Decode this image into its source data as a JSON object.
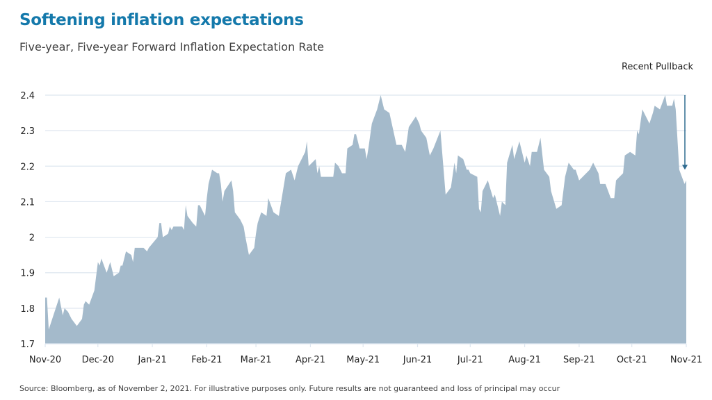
{
  "title": "Softening inflation expectations",
  "subtitle": "Five-year, Five-year Forward Inflation Expectation Rate",
  "source": "Source: Bloomberg, as of November 2, 2021. For illustrative purposes only. Future results are not guaranteed and loss of principal may occur",
  "colors": {
    "title": "#1479ab",
    "area": "#a4bacb",
    "grid": "#dde6ef",
    "arrow": "#2e6a8f"
  },
  "chart_data": {
    "type": "area",
    "title": "Softening inflation expectations",
    "subtitle": "Five-year, Five-year Forward Inflation Expectation Rate",
    "xlabel": "",
    "ylabel": "",
    "ylim": [
      1.7,
      2.4
    ],
    "xlim": [
      "2020-11-01",
      "2021-11-01"
    ],
    "grid": "horizontal",
    "y_ticks": [
      "1.7",
      "1.8",
      "1.9",
      "2",
      "2.1",
      "2.2",
      "2.3",
      "2.4"
    ],
    "x_ticks": [
      {
        "date": "2020-11-01",
        "label": "Nov-20"
      },
      {
        "date": "2020-12-01",
        "label": "Dec-20"
      },
      {
        "date": "2021-01-01",
        "label": "Jan-21"
      },
      {
        "date": "2021-02-01",
        "label": "Feb-21"
      },
      {
        "date": "2021-03-01",
        "label": "Mar-21"
      },
      {
        "date": "2021-04-01",
        "label": "Apr-21"
      },
      {
        "date": "2021-05-01",
        "label": "May-21"
      },
      {
        "date": "2021-06-01",
        "label": "Jun-21"
      },
      {
        "date": "2021-07-01",
        "label": "Jul-21"
      },
      {
        "date": "2021-08-01",
        "label": "Aug-21"
      },
      {
        "date": "2021-09-01",
        "label": "Sep-21"
      },
      {
        "date": "2021-10-01",
        "label": "Oct-21"
      },
      {
        "date": "2021-11-01",
        "label": "Nov-21"
      }
    ],
    "annotation": {
      "text": "Recent Pullback",
      "from_value": 2.4,
      "to_value": 2.19,
      "date": "2021-11-01"
    },
    "points": [
      [
        "2020-11-01",
        1.83
      ],
      [
        "2020-11-02",
        1.83
      ],
      [
        "2020-11-03",
        1.74
      ],
      [
        "2020-11-05",
        1.77
      ],
      [
        "2020-11-09",
        1.83
      ],
      [
        "2020-11-11",
        1.78
      ],
      [
        "2020-11-12",
        1.8
      ],
      [
        "2020-11-14",
        1.79
      ],
      [
        "2020-11-16",
        1.77
      ],
      [
        "2020-11-19",
        1.75
      ],
      [
        "2020-11-22",
        1.77
      ],
      [
        "2020-11-23",
        1.81
      ],
      [
        "2020-11-24",
        1.82
      ],
      [
        "2020-11-26",
        1.81
      ],
      [
        "2020-11-29",
        1.85
      ],
      [
        "2020-12-01",
        1.93
      ],
      [
        "2020-12-02",
        1.92
      ],
      [
        "2020-12-03",
        1.94
      ],
      [
        "2020-12-06",
        1.9
      ],
      [
        "2020-12-08",
        1.93
      ],
      [
        "2020-12-09",
        1.91
      ],
      [
        "2020-12-10",
        1.89
      ],
      [
        "2020-12-13",
        1.9
      ],
      [
        "2020-12-14",
        1.92
      ],
      [
        "2020-12-15",
        1.92
      ],
      [
        "2020-12-17",
        1.96
      ],
      [
        "2020-12-20",
        1.95
      ],
      [
        "2020-12-21",
        1.93
      ],
      [
        "2020-12-22",
        1.97
      ],
      [
        "2020-12-27",
        1.97
      ],
      [
        "2020-12-29",
        1.96
      ],
      [
        "2020-12-30",
        1.97
      ],
      [
        "2021-01-04",
        2.0
      ],
      [
        "2021-01-05",
        2.04
      ],
      [
        "2021-01-06",
        2.04
      ],
      [
        "2021-01-07",
        2.0
      ],
      [
        "2021-01-10",
        2.01
      ],
      [
        "2021-01-11",
        2.03
      ],
      [
        "2021-01-12",
        2.02
      ],
      [
        "2021-01-13",
        2.03
      ],
      [
        "2021-01-14",
        2.03
      ],
      [
        "2021-01-18",
        2.03
      ],
      [
        "2021-01-19",
        2.02
      ],
      [
        "2021-01-20",
        2.09
      ],
      [
        "2021-01-21",
        2.06
      ],
      [
        "2021-01-24",
        2.04
      ],
      [
        "2021-01-26",
        2.03
      ],
      [
        "2021-01-27",
        2.09
      ],
      [
        "2021-01-28",
        2.09
      ],
      [
        "2021-01-31",
        2.06
      ],
      [
        "2021-02-01",
        2.11
      ],
      [
        "2021-02-02",
        2.15
      ],
      [
        "2021-02-04",
        2.19
      ],
      [
        "2021-02-07",
        2.18
      ],
      [
        "2021-02-08",
        2.18
      ],
      [
        "2021-02-09",
        2.15
      ],
      [
        "2021-02-10",
        2.1
      ],
      [
        "2021-02-11",
        2.13
      ],
      [
        "2021-02-15",
        2.16
      ],
      [
        "2021-02-16",
        2.13
      ],
      [
        "2021-02-17",
        2.07
      ],
      [
        "2021-02-20",
        2.05
      ],
      [
        "2021-02-22",
        2.03
      ],
      [
        "2021-02-23",
        2.0
      ],
      [
        "2021-02-25",
        1.95
      ],
      [
        "2021-02-28",
        1.97
      ],
      [
        "2021-03-01",
        2.01
      ],
      [
        "2021-03-02",
        2.04
      ],
      [
        "2021-03-04",
        2.07
      ],
      [
        "2021-03-07",
        2.06
      ],
      [
        "2021-03-08",
        2.11
      ],
      [
        "2021-03-11",
        2.07
      ],
      [
        "2021-03-14",
        2.06
      ],
      [
        "2021-03-18",
        2.18
      ],
      [
        "2021-03-21",
        2.19
      ],
      [
        "2021-03-23",
        2.16
      ],
      [
        "2021-03-25",
        2.2
      ],
      [
        "2021-03-29",
        2.24
      ],
      [
        "2021-03-30",
        2.27
      ],
      [
        "2021-03-31",
        2.2
      ],
      [
        "2021-04-04",
        2.22
      ],
      [
        "2021-04-05",
        2.18
      ],
      [
        "2021-04-06",
        2.2
      ],
      [
        "2021-04-07",
        2.17
      ],
      [
        "2021-04-11",
        2.17
      ],
      [
        "2021-04-14",
        2.17
      ],
      [
        "2021-04-15",
        2.21
      ],
      [
        "2021-04-17",
        2.2
      ],
      [
        "2021-04-19",
        2.18
      ],
      [
        "2021-04-21",
        2.18
      ],
      [
        "2021-04-22",
        2.25
      ],
      [
        "2021-04-25",
        2.26
      ],
      [
        "2021-04-26",
        2.29
      ],
      [
        "2021-04-27",
        2.29
      ],
      [
        "2021-04-29",
        2.25
      ],
      [
        "2021-05-02",
        2.25
      ],
      [
        "2021-05-03",
        2.22
      ],
      [
        "2021-05-04",
        2.25
      ],
      [
        "2021-05-06",
        2.32
      ],
      [
        "2021-05-09",
        2.36
      ],
      [
        "2021-05-11",
        2.4
      ],
      [
        "2021-05-13",
        2.36
      ],
      [
        "2021-05-16",
        2.35
      ],
      [
        "2021-05-20",
        2.26
      ],
      [
        "2021-05-23",
        2.26
      ],
      [
        "2021-05-25",
        2.24
      ],
      [
        "2021-05-27",
        2.31
      ],
      [
        "2021-05-31",
        2.34
      ],
      [
        "2021-06-02",
        2.32
      ],
      [
        "2021-06-03",
        2.3
      ],
      [
        "2021-06-06",
        2.28
      ],
      [
        "2021-06-08",
        2.23
      ],
      [
        "2021-06-10",
        2.25
      ],
      [
        "2021-06-14",
        2.3
      ],
      [
        "2021-06-17",
        2.12
      ],
      [
        "2021-06-20",
        2.14
      ],
      [
        "2021-06-22",
        2.21
      ],
      [
        "2021-06-23",
        2.18
      ],
      [
        "2021-06-24",
        2.23
      ],
      [
        "2021-06-27",
        2.22
      ],
      [
        "2021-06-29",
        2.19
      ],
      [
        "2021-06-30",
        2.19
      ],
      [
        "2021-07-01",
        2.18
      ],
      [
        "2021-07-05",
        2.17
      ],
      [
        "2021-07-06",
        2.08
      ],
      [
        "2021-07-07",
        2.07
      ],
      [
        "2021-07-08",
        2.13
      ],
      [
        "2021-07-11",
        2.16
      ],
      [
        "2021-07-14",
        2.11
      ],
      [
        "2021-07-15",
        2.12
      ],
      [
        "2021-07-18",
        2.06
      ],
      [
        "2021-07-19",
        2.1
      ],
      [
        "2021-07-21",
        2.09
      ],
      [
        "2021-07-22",
        2.21
      ],
      [
        "2021-07-25",
        2.26
      ],
      [
        "2021-07-26",
        2.22
      ],
      [
        "2021-07-29",
        2.27
      ],
      [
        "2021-08-01",
        2.21
      ],
      [
        "2021-08-02",
        2.23
      ],
      [
        "2021-08-04",
        2.2
      ],
      [
        "2021-08-05",
        2.24
      ],
      [
        "2021-08-08",
        2.24
      ],
      [
        "2021-08-10",
        2.28
      ],
      [
        "2021-08-12",
        2.19
      ],
      [
        "2021-08-15",
        2.17
      ],
      [
        "2021-08-16",
        2.13
      ],
      [
        "2021-08-19",
        2.08
      ],
      [
        "2021-08-22",
        2.09
      ],
      [
        "2021-08-24",
        2.17
      ],
      [
        "2021-08-26",
        2.21
      ],
      [
        "2021-08-29",
        2.19
      ],
      [
        "2021-08-30",
        2.19
      ],
      [
        "2021-09-01",
        2.16
      ],
      [
        "2021-09-03",
        2.17
      ],
      [
        "2021-09-07",
        2.19
      ],
      [
        "2021-09-09",
        2.21
      ],
      [
        "2021-09-12",
        2.18
      ],
      [
        "2021-09-13",
        2.15
      ],
      [
        "2021-09-16",
        2.15
      ],
      [
        "2021-09-19",
        2.11
      ],
      [
        "2021-09-21",
        2.11
      ],
      [
        "2021-09-22",
        2.16
      ],
      [
        "2021-09-26",
        2.18
      ],
      [
        "2021-09-27",
        2.23
      ],
      [
        "2021-09-30",
        2.24
      ],
      [
        "2021-10-03",
        2.23
      ],
      [
        "2021-10-04",
        2.3
      ],
      [
        "2021-10-05",
        2.29
      ],
      [
        "2021-10-07",
        2.36
      ],
      [
        "2021-10-11",
        2.32
      ],
      [
        "2021-10-13",
        2.35
      ],
      [
        "2021-10-14",
        2.37
      ],
      [
        "2021-10-17",
        2.36
      ],
      [
        "2021-10-20",
        2.4
      ],
      [
        "2021-10-21",
        2.37
      ],
      [
        "2021-10-24",
        2.37
      ],
      [
        "2021-10-25",
        2.39
      ],
      [
        "2021-10-26",
        2.36
      ],
      [
        "2021-10-28",
        2.19
      ],
      [
        "2021-10-31",
        2.15
      ],
      [
        "2021-11-01",
        2.16
      ]
    ]
  }
}
